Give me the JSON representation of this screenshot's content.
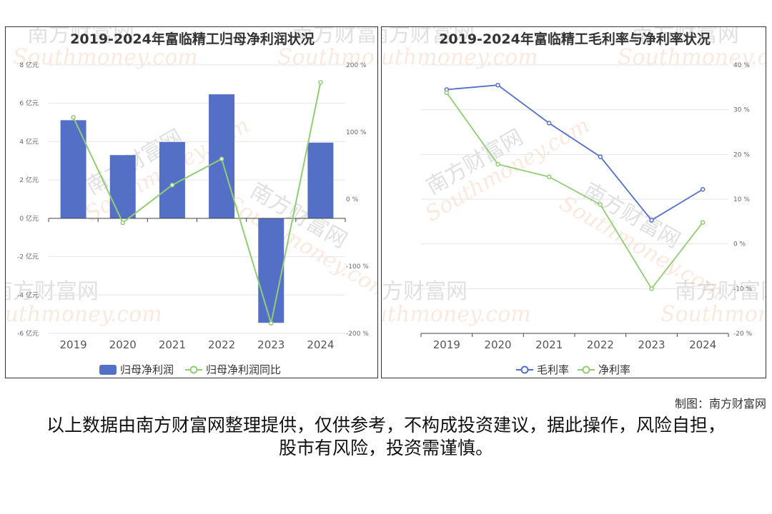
{
  "credit": "制图：南方财富网",
  "disclaimer": "以上数据由南方财富网整理提供，仅供参考，不构成投资建议，据此操作，风险自担，股市有风险，投资需谨慎。",
  "watermark": {
    "cn": "南方财富网",
    "en": "Southmoney.com"
  },
  "colors": {
    "bar": "#5470c6",
    "green": "#91cc75",
    "blue": "#5470c6",
    "grid": "#e6e6e6",
    "axis": "#666666"
  },
  "chart_data": [
    {
      "type": "bar+line",
      "title": "2019-2024年富临精工归母净利润状况",
      "categories": [
        "2019",
        "2020",
        "2021",
        "2022",
        "2023",
        "2024"
      ],
      "left_axis": {
        "ylim": [
          -6,
          8
        ],
        "ticks": [
          -6,
          -4,
          -2,
          0,
          2,
          4,
          6,
          8
        ],
        "unit": "亿元"
      },
      "right_axis": {
        "ylim": [
          -200,
          200
        ],
        "ticks": [
          -200,
          -100,
          0,
          100,
          200
        ],
        "unit": "%"
      },
      "series": [
        {
          "name": "归母净利润",
          "kind": "bar",
          "axis": "left",
          "values": [
            5.12,
            3.3,
            3.98,
            6.47,
            -5.45,
            3.95
          ]
        },
        {
          "name": "归母净利润同比",
          "kind": "line",
          "axis": "right",
          "values": [
            122,
            -35,
            21,
            60,
            -185,
            174
          ]
        }
      ]
    },
    {
      "type": "line",
      "title": "2019-2024年富临精工毛利率与净利率状况",
      "categories": [
        "2019",
        "2020",
        "2021",
        "2022",
        "2023",
        "2024"
      ],
      "right_axis": {
        "ylim": [
          -20,
          40
        ],
        "ticks": [
          -20,
          -10,
          0,
          10,
          20,
          30,
          40
        ],
        "unit": "%"
      },
      "series": [
        {
          "name": "毛利率",
          "kind": "line",
          "values": [
            34.5,
            35.5,
            27,
            19.5,
            5.3,
            12.2
          ]
        },
        {
          "name": "净利率",
          "kind": "line",
          "values": [
            33.8,
            17.8,
            15,
            8.8,
            -10,
            4.8
          ]
        }
      ]
    }
  ]
}
